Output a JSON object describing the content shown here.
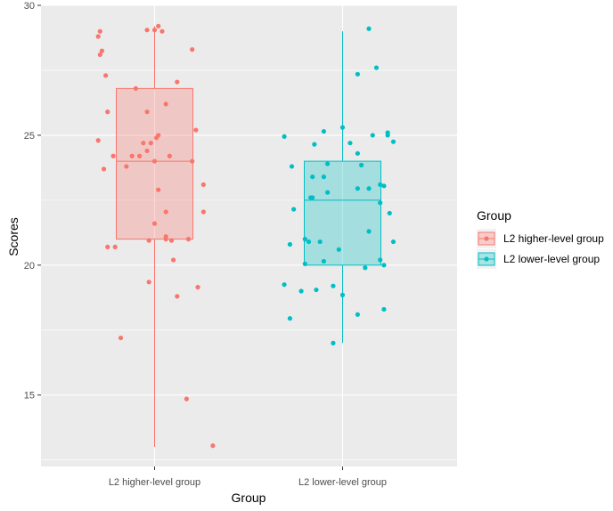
{
  "chart_data": {
    "type": "boxplot",
    "title": "",
    "xlabel": "Group",
    "ylabel": "Scores",
    "ylim": [
      12.25,
      30.0
    ],
    "yticks": [
      15,
      20,
      25,
      30
    ],
    "grid": true,
    "legend": {
      "title": "Group",
      "position": "right"
    },
    "categories": [
      "L2 higher-level group",
      "L2 lower-level group"
    ],
    "series": [
      {
        "name": "L2 higher-level group",
        "color": "#F8766D",
        "box": {
          "min": 13.0,
          "q1": 21.0,
          "median": 24.0,
          "q3": 26.8,
          "max": 29.2
        },
        "points": [
          [
            -0.3,
            28.8
          ],
          [
            -0.29,
            29.0
          ],
          [
            -0.29,
            28.1
          ],
          [
            -0.28,
            28.25
          ],
          [
            -0.26,
            27.3
          ],
          [
            -0.25,
            25.9
          ],
          [
            -0.3,
            24.8
          ],
          [
            -0.27,
            23.7
          ],
          [
            -0.22,
            24.2
          ],
          [
            -0.25,
            20.7
          ],
          [
            -0.21,
            20.7
          ],
          [
            -0.18,
            17.2
          ],
          [
            -0.15,
            23.8
          ],
          [
            -0.12,
            24.2
          ],
          [
            -0.08,
            24.2
          ],
          [
            -0.06,
            24.7
          ],
          [
            -0.04,
            24.4
          ],
          [
            -0.02,
            24.7
          ],
          [
            0.0,
            24.0
          ],
          [
            0.01,
            24.9
          ],
          [
            -0.1,
            26.8
          ],
          [
            -0.04,
            25.9
          ],
          [
            0.02,
            25.0
          ],
          [
            0.06,
            26.2
          ],
          [
            -0.04,
            29.05
          ],
          [
            0.0,
            29.05
          ],
          [
            0.02,
            29.2
          ],
          [
            0.04,
            29.0
          ],
          [
            0.12,
            27.05
          ],
          [
            0.2,
            28.3
          ],
          [
            0.22,
            25.2
          ],
          [
            0.2,
            24.0
          ],
          [
            0.08,
            24.2
          ],
          [
            0.26,
            23.1
          ],
          [
            0.26,
            22.05
          ],
          [
            0.02,
            22.9
          ],
          [
            0.06,
            22.05
          ],
          [
            0.0,
            21.6
          ],
          [
            0.06,
            21.0
          ],
          [
            0.09,
            20.95
          ],
          [
            0.18,
            21.0
          ],
          [
            -0.03,
            20.95
          ],
          [
            0.1,
            20.2
          ],
          [
            -0.03,
            19.35
          ],
          [
            0.12,
            18.8
          ],
          [
            0.23,
            19.15
          ],
          [
            0.17,
            14.85
          ],
          [
            0.31,
            13.05
          ],
          [
            0.06,
            21.1
          ]
        ]
      },
      {
        "name": "L2 lower-level group",
        "color": "#00BFC4",
        "box": {
          "min": 17.0,
          "q1": 20.0,
          "median": 22.5,
          "q3": 24.0,
          "max": 29.0
        },
        "points": [
          [
            -0.31,
            24.95
          ],
          [
            -0.27,
            23.8
          ],
          [
            -0.26,
            22.15
          ],
          [
            -0.28,
            20.8
          ],
          [
            -0.31,
            19.25
          ],
          [
            -0.28,
            17.95
          ],
          [
            -0.22,
            19.0
          ],
          [
            -0.2,
            20.05
          ],
          [
            -0.18,
            20.9
          ],
          [
            -0.2,
            21.0
          ],
          [
            -0.17,
            22.6
          ],
          [
            -0.16,
            22.6
          ],
          [
            -0.16,
            23.4
          ],
          [
            -0.15,
            24.65
          ],
          [
            -0.1,
            25.15
          ],
          [
            -0.08,
            23.9
          ],
          [
            -0.1,
            23.4
          ],
          [
            -0.08,
            22.8
          ],
          [
            -0.12,
            20.9
          ],
          [
            -0.1,
            20.15
          ],
          [
            -0.14,
            19.05
          ],
          [
            -0.05,
            19.2
          ],
          [
            -0.05,
            17.0
          ],
          [
            0.0,
            18.85
          ],
          [
            -0.02,
            20.6
          ],
          [
            0.0,
            25.3
          ],
          [
            0.04,
            24.7
          ],
          [
            0.08,
            24.3
          ],
          [
            0.1,
            23.85
          ],
          [
            0.08,
            22.95
          ],
          [
            0.14,
            22.95
          ],
          [
            0.14,
            21.3
          ],
          [
            0.2,
            22.4
          ],
          [
            0.2,
            23.1
          ],
          [
            0.22,
            23.05
          ],
          [
            0.25,
            22.0
          ],
          [
            0.27,
            20.9
          ],
          [
            0.24,
            25.1
          ],
          [
            0.24,
            25.0
          ],
          [
            0.27,
            24.75
          ],
          [
            0.16,
            25.0
          ],
          [
            0.18,
            27.6
          ],
          [
            0.08,
            27.35
          ],
          [
            0.14,
            29.1
          ],
          [
            0.2,
            20.2
          ],
          [
            0.22,
            20.0
          ],
          [
            0.22,
            18.3
          ],
          [
            0.08,
            18.1
          ],
          [
            0.12,
            19.9
          ]
        ]
      }
    ]
  }
}
